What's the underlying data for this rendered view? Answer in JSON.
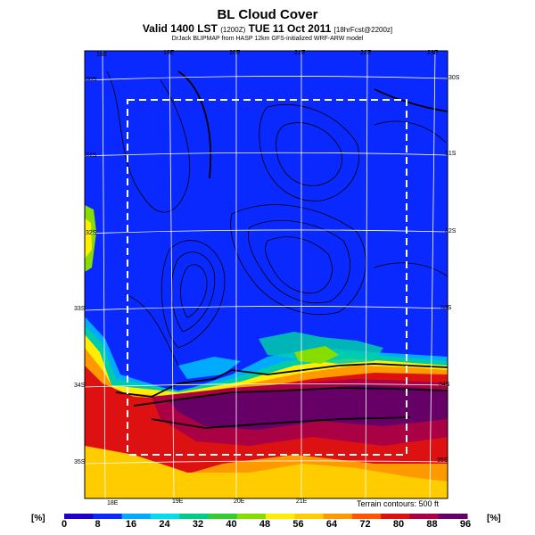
{
  "header": {
    "title": "BL Cloud Cover",
    "subtitle": "Valid 1400 LST",
    "subtitle_small": "(1200Z)",
    "subtitle_date": "TUE 11 Oct 2011",
    "subtitle_run": "[18hrFcst@2200z]",
    "credit": "DrJack BLIPMAP from HASP 12km GFS-initialized WRF-ARW model"
  },
  "map": {
    "top_lon_labels": [
      "18E",
      "19E",
      "20E",
      "21E",
      "22E",
      "23E"
    ],
    "bottom_lon_labels": [
      "18E",
      "19E",
      "20E",
      "21E"
    ],
    "left_lat_labels": [
      "30S",
      "31S",
      "32S",
      "33S",
      "34S",
      "35S"
    ],
    "right_lat_labels": [
      "30S",
      "31S",
      "32S",
      "33S",
      "34S",
      "35S"
    ],
    "terrain_note": "Terrain contours: 500 ft",
    "colors": {
      "ocean": "#0a29ff",
      "dashed_box": "#ffffff"
    }
  },
  "colorbar": {
    "unit_left": "[%]",
    "unit_right": "[%]",
    "labels": [
      "0",
      "8",
      "16",
      "24",
      "32",
      "40",
      "48",
      "56",
      "64",
      "72",
      "80",
      "88",
      "96"
    ],
    "colors": [
      "#1e00c8",
      "#0a29ff",
      "#00aaff",
      "#00ddee",
      "#00cc88",
      "#33cc33",
      "#88dd00",
      "#ffee00",
      "#ffcc00",
      "#ff9900",
      "#ff5500",
      "#dd1111",
      "#aa0044",
      "#660066"
    ]
  }
}
